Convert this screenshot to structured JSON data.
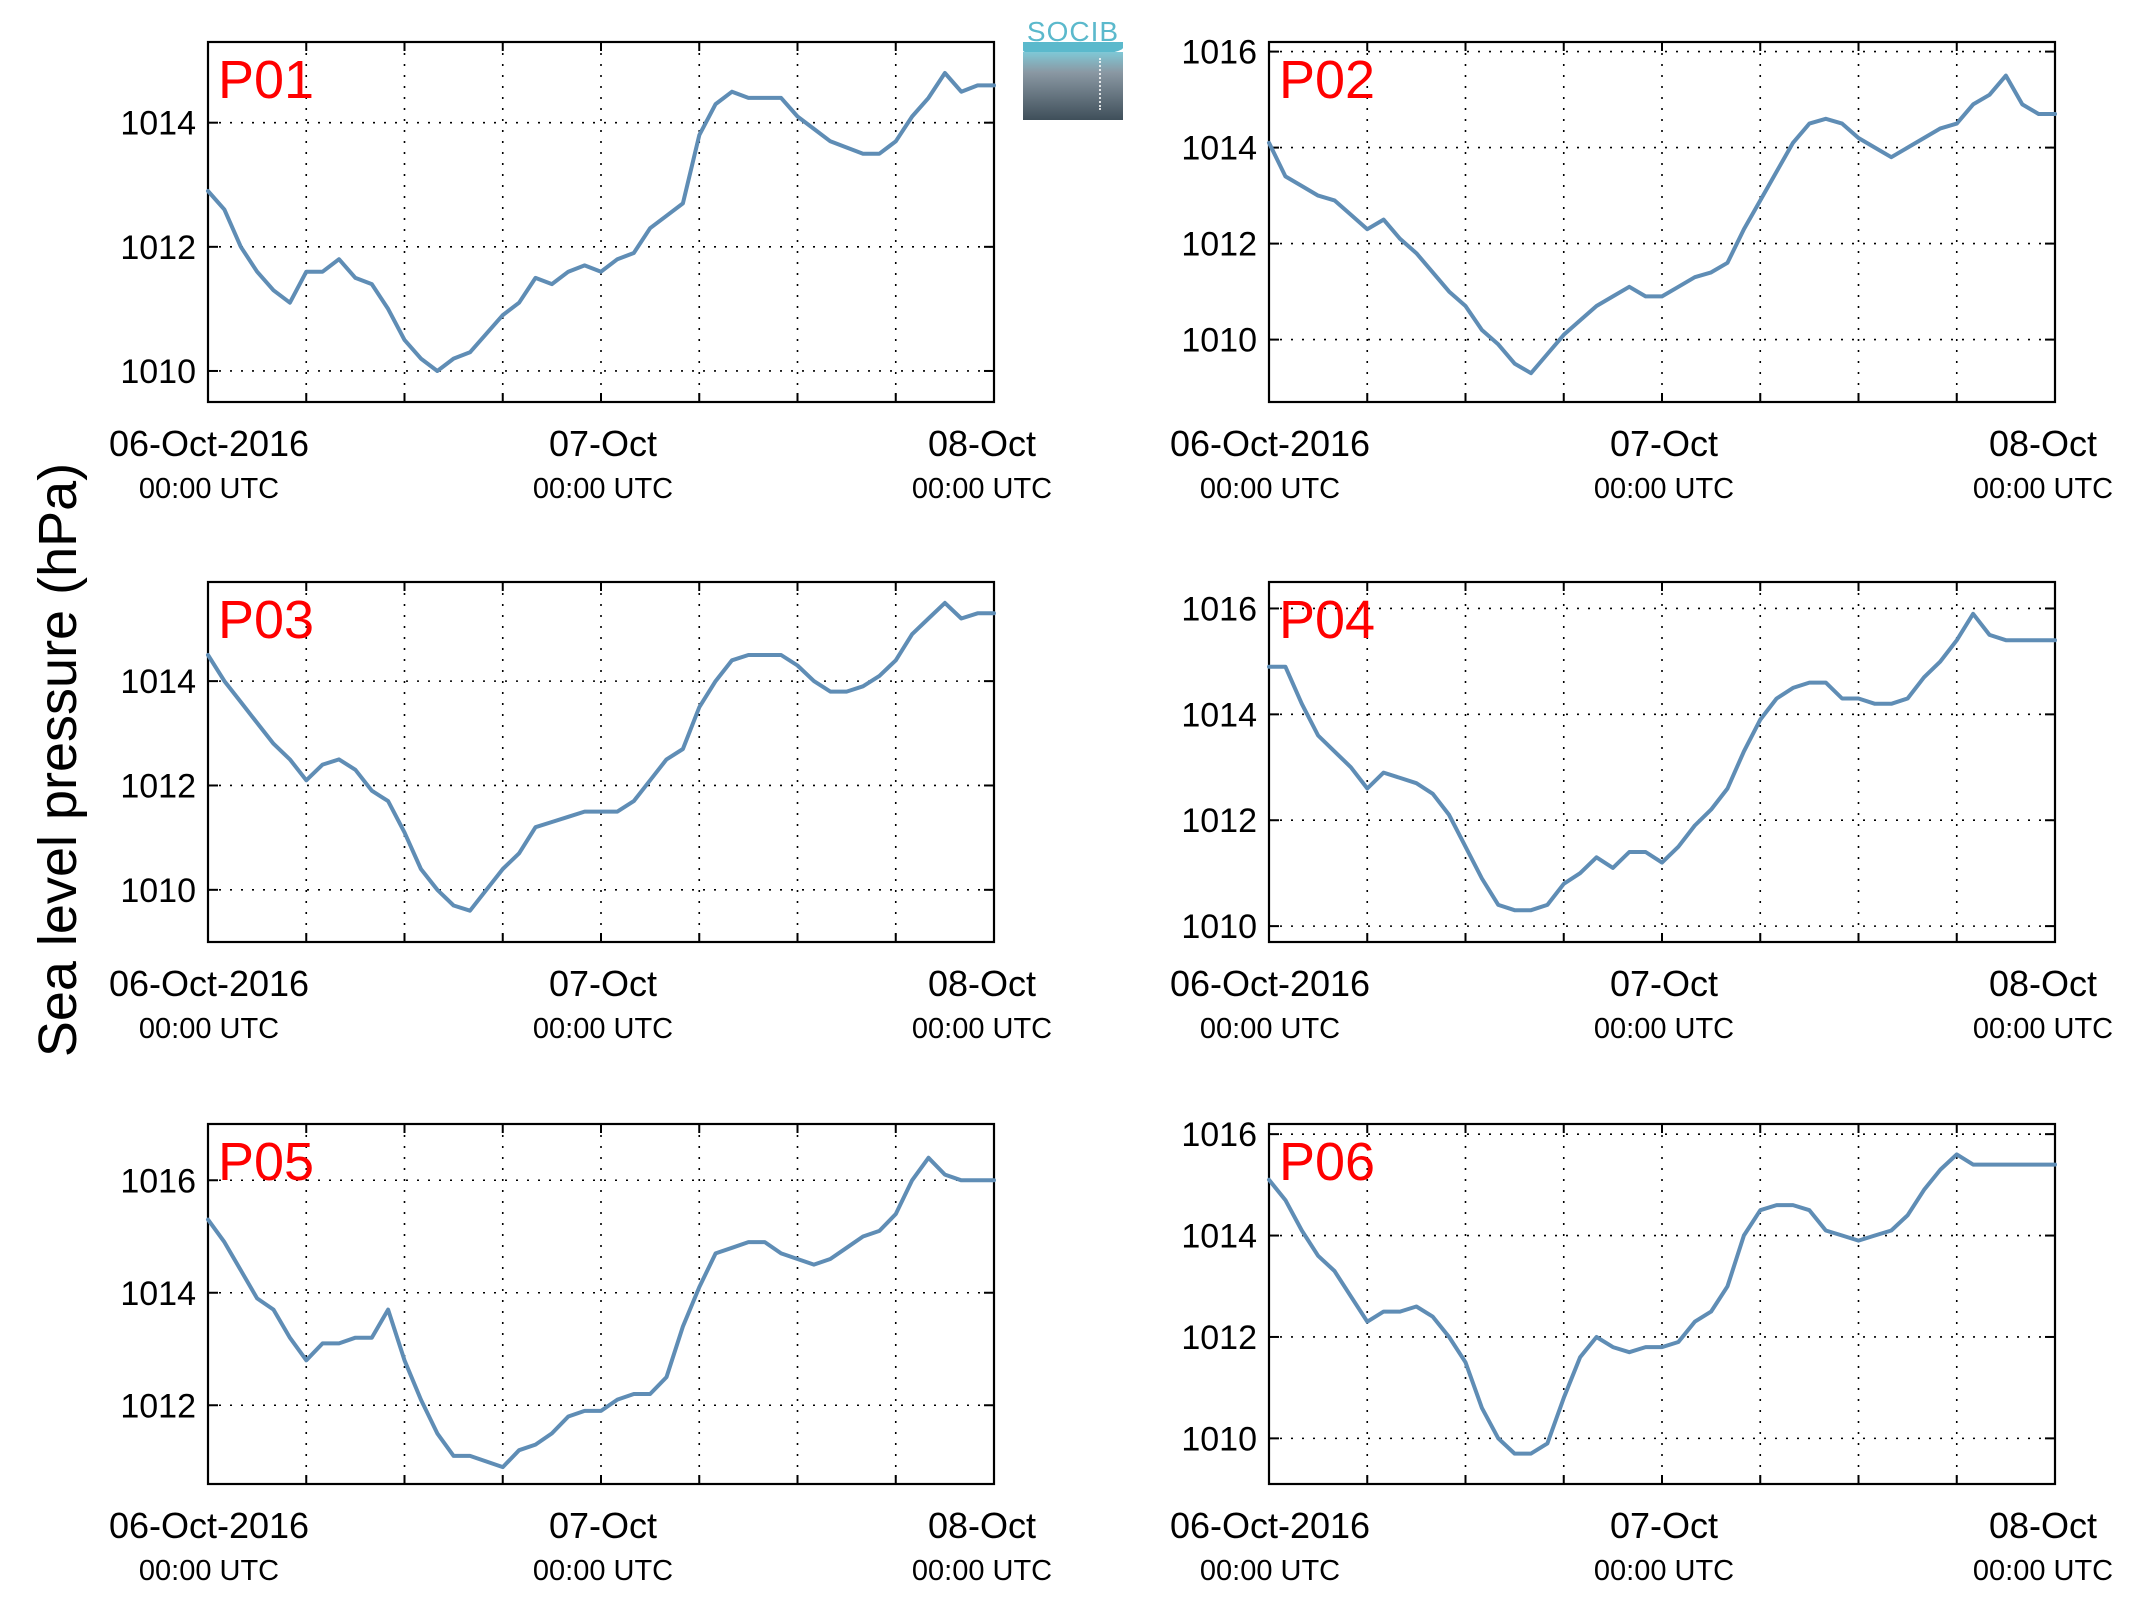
{
  "figure": {
    "ylabel": "Sea level pressure (hPa)",
    "logo_text": "SOCIB",
    "line_color": "#5f8db5",
    "panel_label_color": "#ff0000",
    "x_ticks": [
      {
        "date": "06-Oct-2016",
        "time": "00:00 UTC"
      },
      {
        "date": "07-Oct",
        "time": "00:00 UTC"
      },
      {
        "date": "08-Oct",
        "time": "00:00 UTC"
      }
    ]
  },
  "chart_data": [
    {
      "type": "line",
      "label": "P01",
      "xunit": "hours since 06-Oct-2016 00:00 UTC",
      "xlim": [
        0,
        48
      ],
      "ylim": [
        1009.5,
        1015.3
      ],
      "yticks": [
        1010,
        1012,
        1014
      ],
      "grid": true,
      "x": [
        0,
        1,
        2,
        3,
        4,
        5,
        6,
        7,
        8,
        9,
        10,
        11,
        12,
        13,
        14,
        15,
        16,
        17,
        18,
        19,
        20,
        21,
        22,
        23,
        24,
        25,
        26,
        27,
        28,
        29,
        30,
        31,
        32,
        33,
        34,
        35,
        36,
        37,
        38,
        39,
        40,
        41,
        42,
        43,
        44,
        45,
        46,
        47,
        48
      ],
      "y": [
        1012.9,
        1012.6,
        1012.0,
        1011.6,
        1011.3,
        1011.1,
        1011.6,
        1011.6,
        1011.8,
        1011.5,
        1011.4,
        1011.0,
        1010.5,
        1010.2,
        1010.0,
        1010.2,
        1010.3,
        1010.6,
        1010.9,
        1011.1,
        1011.5,
        1011.4,
        1011.6,
        1011.7,
        1011.6,
        1011.8,
        1011.9,
        1012.3,
        1012.5,
        1012.7,
        1013.8,
        1014.3,
        1014.5,
        1014.4,
        1014.4,
        1014.4,
        1014.1,
        1013.9,
        1013.7,
        1013.6,
        1013.5,
        1013.5,
        1013.7,
        1014.1,
        1014.4,
        1014.8,
        1014.5,
        1014.6,
        1014.6
      ]
    },
    {
      "type": "line",
      "label": "P02",
      "xunit": "hours since 06-Oct-2016 00:00 UTC",
      "xlim": [
        0,
        48
      ],
      "ylim": [
        1008.7,
        1016.2
      ],
      "yticks": [
        1010,
        1012,
        1014,
        1016
      ],
      "grid": true,
      "x": [
        0,
        1,
        2,
        3,
        4,
        5,
        6,
        7,
        8,
        9,
        10,
        11,
        12,
        13,
        14,
        15,
        16,
        17,
        18,
        19,
        20,
        21,
        22,
        23,
        24,
        25,
        26,
        27,
        28,
        29,
        30,
        31,
        32,
        33,
        34,
        35,
        36,
        37,
        38,
        39,
        40,
        41,
        42,
        43,
        44,
        45,
        46,
        47,
        48
      ],
      "y": [
        1014.1,
        1013.4,
        1013.2,
        1013.0,
        1012.9,
        1012.6,
        1012.3,
        1012.5,
        1012.1,
        1011.8,
        1011.4,
        1011.0,
        1010.7,
        1010.2,
        1009.9,
        1009.5,
        1009.3,
        1009.7,
        1010.1,
        1010.4,
        1010.7,
        1010.9,
        1011.1,
        1010.9,
        1010.9,
        1011.1,
        1011.3,
        1011.4,
        1011.6,
        1012.3,
        1012.9,
        1013.5,
        1014.1,
        1014.5,
        1014.6,
        1014.5,
        1014.2,
        1014.0,
        1013.8,
        1014.0,
        1014.2,
        1014.4,
        1014.5,
        1014.9,
        1015.1,
        1015.5,
        1014.9,
        1014.7,
        1014.7
      ]
    },
    {
      "type": "line",
      "label": "P03",
      "xunit": "hours since 06-Oct-2016 00:00 UTC",
      "xlim": [
        0,
        48
      ],
      "ylim": [
        1009.0,
        1015.9
      ],
      "yticks": [
        1010,
        1012,
        1014
      ],
      "grid": true,
      "x": [
        0,
        1,
        2,
        3,
        4,
        5,
        6,
        7,
        8,
        9,
        10,
        11,
        12,
        13,
        14,
        15,
        16,
        17,
        18,
        19,
        20,
        21,
        22,
        23,
        24,
        25,
        26,
        27,
        28,
        29,
        30,
        31,
        32,
        33,
        34,
        35,
        36,
        37,
        38,
        39,
        40,
        41,
        42,
        43,
        44,
        45,
        46,
        47,
        48
      ],
      "y": [
        1014.5,
        1014.0,
        1013.6,
        1013.2,
        1012.8,
        1012.5,
        1012.1,
        1012.4,
        1012.5,
        1012.3,
        1011.9,
        1011.7,
        1011.1,
        1010.4,
        1010.0,
        1009.7,
        1009.6,
        1010.0,
        1010.4,
        1010.7,
        1011.2,
        1011.3,
        1011.4,
        1011.5,
        1011.5,
        1011.5,
        1011.7,
        1012.1,
        1012.5,
        1012.7,
        1013.5,
        1014.0,
        1014.4,
        1014.5,
        1014.5,
        1014.5,
        1014.3,
        1014.0,
        1013.8,
        1013.8,
        1013.9,
        1014.1,
        1014.4,
        1014.9,
        1015.2,
        1015.5,
        1015.2,
        1015.3,
        1015.3
      ]
    },
    {
      "type": "line",
      "label": "P04",
      "xunit": "hours since 06-Oct-2016 00:00 UTC",
      "xlim": [
        0,
        48
      ],
      "ylim": [
        1009.7,
        1016.5
      ],
      "yticks": [
        1010,
        1012,
        1014,
        1016
      ],
      "grid": true,
      "x": [
        0,
        1,
        2,
        3,
        4,
        5,
        6,
        7,
        8,
        9,
        10,
        11,
        12,
        13,
        14,
        15,
        16,
        17,
        18,
        19,
        20,
        21,
        22,
        23,
        24,
        25,
        26,
        27,
        28,
        29,
        30,
        31,
        32,
        33,
        34,
        35,
        36,
        37,
        38,
        39,
        40,
        41,
        42,
        43,
        44,
        45,
        46,
        47,
        48
      ],
      "y": [
        1014.9,
        1014.9,
        1014.2,
        1013.6,
        1013.3,
        1013.0,
        1012.6,
        1012.9,
        1012.8,
        1012.7,
        1012.5,
        1012.1,
        1011.5,
        1010.9,
        1010.4,
        1010.3,
        1010.3,
        1010.4,
        1010.8,
        1011.0,
        1011.3,
        1011.1,
        1011.4,
        1011.4,
        1011.2,
        1011.5,
        1011.9,
        1012.2,
        1012.6,
        1013.3,
        1013.9,
        1014.3,
        1014.5,
        1014.6,
        1014.6,
        1014.3,
        1014.3,
        1014.2,
        1014.2,
        1014.3,
        1014.7,
        1015.0,
        1015.4,
        1015.9,
        1015.5,
        1015.4,
        1015.4,
        1015.4,
        1015.4
      ]
    },
    {
      "type": "line",
      "label": "P05",
      "xunit": "hours since 06-Oct-2016 00:00 UTC",
      "xlim": [
        0,
        48
      ],
      "ylim": [
        1010.6,
        1017.0
      ],
      "yticks": [
        1012,
        1014,
        1016
      ],
      "grid": true,
      "x": [
        0,
        1,
        2,
        3,
        4,
        5,
        6,
        7,
        8,
        9,
        10,
        11,
        12,
        13,
        14,
        15,
        16,
        17,
        18,
        19,
        20,
        21,
        22,
        23,
        24,
        25,
        26,
        27,
        28,
        29,
        30,
        31,
        32,
        33,
        34,
        35,
        36,
        37,
        38,
        39,
        40,
        41,
        42,
        43,
        44,
        45,
        46,
        47,
        48
      ],
      "y": [
        1015.3,
        1014.9,
        1014.4,
        1013.9,
        1013.7,
        1013.2,
        1012.8,
        1013.1,
        1013.1,
        1013.2,
        1013.2,
        1013.7,
        1012.8,
        1012.1,
        1011.5,
        1011.1,
        1011.1,
        1011.0,
        1010.9,
        1011.2,
        1011.3,
        1011.5,
        1011.8,
        1011.9,
        1011.9,
        1012.1,
        1012.2,
        1012.2,
        1012.5,
        1013.4,
        1014.1,
        1014.7,
        1014.8,
        1014.9,
        1014.9,
        1014.7,
        1014.6,
        1014.5,
        1014.6,
        1014.8,
        1015.0,
        1015.1,
        1015.4,
        1016.0,
        1016.4,
        1016.1,
        1016.0,
        1016.0,
        1016.0
      ]
    },
    {
      "type": "line",
      "label": "P06",
      "xunit": "hours since 06-Oct-2016 00:00 UTC",
      "xlim": [
        0,
        48
      ],
      "ylim": [
        1009.1,
        1016.2
      ],
      "yticks": [
        1010,
        1012,
        1014,
        1016
      ],
      "grid": true,
      "x": [
        0,
        1,
        2,
        3,
        4,
        5,
        6,
        7,
        8,
        9,
        10,
        11,
        12,
        13,
        14,
        15,
        16,
        17,
        18,
        19,
        20,
        21,
        22,
        23,
        24,
        25,
        26,
        27,
        28,
        29,
        30,
        31,
        32,
        33,
        34,
        35,
        36,
        37,
        38,
        39,
        40,
        41,
        42,
        43,
        44,
        45,
        46,
        47,
        48
      ],
      "y": [
        1015.1,
        1014.7,
        1014.1,
        1013.6,
        1013.3,
        1012.8,
        1012.3,
        1012.5,
        1012.5,
        1012.6,
        1012.4,
        1012.0,
        1011.5,
        1010.6,
        1010.0,
        1009.7,
        1009.7,
        1009.9,
        1010.8,
        1011.6,
        1012.0,
        1011.8,
        1011.7,
        1011.8,
        1011.8,
        1011.9,
        1012.3,
        1012.5,
        1013.0,
        1014.0,
        1014.5,
        1014.6,
        1014.6,
        1014.5,
        1014.1,
        1014.0,
        1013.9,
        1014.0,
        1014.1,
        1014.4,
        1014.9,
        1015.3,
        1015.6,
        1015.4,
        1015.4,
        1015.4,
        1015.4,
        1015.4,
        1015.4
      ]
    }
  ]
}
